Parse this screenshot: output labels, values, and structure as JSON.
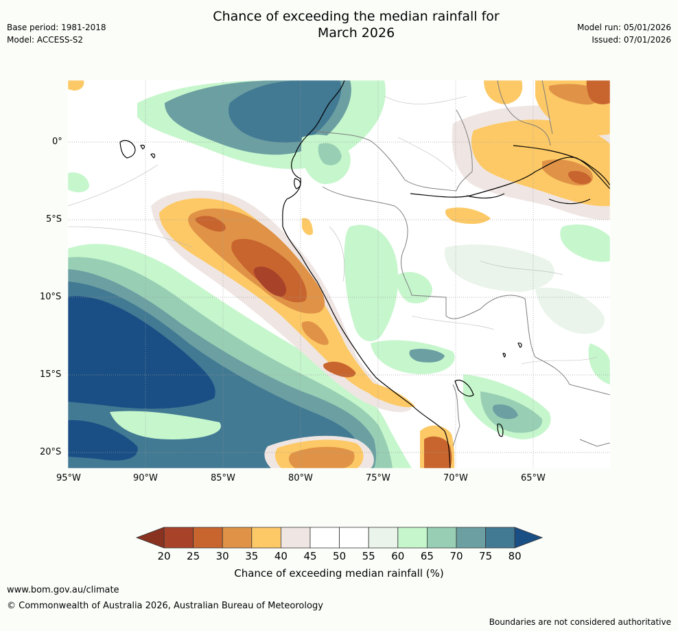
{
  "header": {
    "title_line1": "Chance of exceeding the median rainfall for",
    "title_line2": "March 2026",
    "base_period": "Base period: 1981-2018",
    "model": "Model: ACCESS-S2",
    "model_run": "Model run: 05/01/2026",
    "issued": "Issued: 07/01/2026"
  },
  "map": {
    "lat_labels": [
      "0°",
      "5°S",
      "10°S",
      "15°S",
      "20°S"
    ],
    "lon_labels": [
      "95°W",
      "90°W",
      "85°W",
      "80°W",
      "75°W",
      "70°W",
      "65°W"
    ]
  },
  "colorbar": {
    "ticks": [
      "20",
      "25",
      "30",
      "35",
      "40",
      "45",
      "50",
      "55",
      "60",
      "65",
      "70",
      "75",
      "80"
    ],
    "label": "Chance of exceeding median rainfall (%)",
    "colors": [
      "#a8432a",
      "#c8652f",
      "#e09347",
      "#fdc966",
      "#efe6e3",
      "#ffffff",
      "#ffffff",
      "#eaf4ea",
      "#c6f6cc",
      "#98cfb4",
      "#6b9fa2",
      "#427993"
    ],
    "low_color": "#8a3220",
    "high_color": "#1a4f85"
  },
  "footer": {
    "url": "www.bom.gov.au/climate",
    "copyright": "© Commonwealth of Australia 2026, Australian Bureau of Meteorology",
    "disclaimer": "Boundaries are not considered authoritative"
  }
}
